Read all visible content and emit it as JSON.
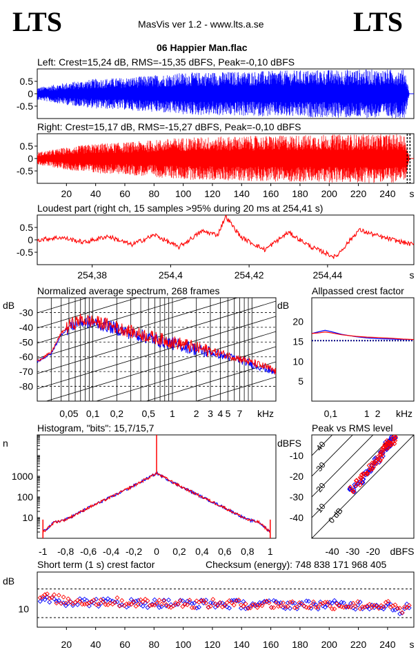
{
  "header": {
    "logo_left": "LTS",
    "logo_right": "LTS",
    "app": "MasVis ver 1.2 - www.lts.a.se",
    "track": "06 Happier Man.flac"
  },
  "colors": {
    "left": "#0000ff",
    "right": "#ff0000",
    "dotted": "#000080"
  },
  "panels": {
    "left_wave": {
      "title": "Left: Crest=15,24 dB, RMS=-15,35 dBFS, Peak=-0,10 dBFS",
      "yticks": [
        "0.5",
        "0",
        "-0.5"
      ]
    },
    "right_wave": {
      "title": "Right: Crest=15,17 dB, RMS=-15,27 dBFS, Peak=-0,10 dBFS",
      "yticks": [
        "0.5",
        "0",
        "-0.5"
      ],
      "xticks": [
        "20",
        "40",
        "60",
        "80",
        "100",
        "120",
        "140",
        "160",
        "180",
        "200",
        "220",
        "240"
      ],
      "unit": "s"
    },
    "loudest": {
      "title": "Loudest part (right ch, 15 samples >95% during 20 ms at 254,41 s)",
      "yticks": [
        "0.5",
        "0",
        "-0.5"
      ],
      "xticks": [
        "254,38",
        "254,4",
        "254,42",
        "254,44"
      ],
      "unit": "s"
    },
    "spectrum": {
      "title": "Normalized average spectrum, 268 frames",
      "ylabel": "dB",
      "yticks": [
        "-30",
        "-40",
        "-50",
        "-60",
        "-70",
        "-80"
      ],
      "xticks": [
        "0,05",
        "0,1",
        "0,2",
        "0,5",
        "1",
        "2",
        "3",
        "4",
        "5",
        "7"
      ],
      "unit": "kHz"
    },
    "allpass": {
      "title": "Allpassed crest factor",
      "ylabel": "dB",
      "yticks": [
        "20",
        "15",
        "10",
        "5"
      ],
      "xticks": [
        "0,1",
        "1",
        "2"
      ],
      "unit": "kHz"
    },
    "histogram": {
      "title": "Histogram, \"bits\": 15,7/15,7",
      "ylabel": "n",
      "yticks": [
        "1000",
        "100",
        "10"
      ],
      "xticks": [
        "-1",
        "-0,8",
        "-0,6",
        "-0,4",
        "-0,2",
        "0",
        "0,2",
        "0,4",
        "0,6",
        "0,8",
        "1"
      ]
    },
    "peak_rms": {
      "title": "Peak vs RMS level",
      "ylabel": "dBFS",
      "yticks": [
        "-10",
        "-20",
        "-30",
        "-40"
      ],
      "xticks": [
        "-40",
        "-30",
        "-20"
      ],
      "unit": "dBFS",
      "diag_labels": [
        "40",
        "30",
        "20",
        "10",
        "0 dB"
      ]
    },
    "short_crest": {
      "title": "Short term (1 s) crest factor",
      "ylabel": "dB",
      "ytick": "10",
      "checksum": "Checksum (energy):   748 838 171 968 405",
      "xticks": [
        "20",
        "40",
        "60",
        "80",
        "100",
        "120",
        "140",
        "160",
        "180",
        "200",
        "220",
        "240"
      ],
      "unit": "s"
    }
  },
  "chart_data": [
    {
      "type": "area",
      "title": "Left: Crest=15,24 dB, RMS=-15,35 dBFS, Peak=-0,10 dBFS",
      "xlim": [
        0,
        258
      ],
      "ylim": [
        -1,
        1
      ],
      "envelope": {
        "x": [
          0,
          20,
          40,
          60,
          80,
          100,
          120,
          140,
          160,
          180,
          200,
          220,
          240,
          252,
          255
        ],
        "peak": [
          0.25,
          0.45,
          0.6,
          0.65,
          0.75,
          0.85,
          0.88,
          0.9,
          0.92,
          0.95,
          0.97,
          0.98,
          0.98,
          0.98,
          0.0
        ]
      }
    },
    {
      "type": "area",
      "title": "Right: Crest=15,17 dB, RMS=-15,27 dBFS, Peak=-0,10 dBFS",
      "xlim": [
        0,
        258
      ],
      "ylim": [
        -1,
        1
      ],
      "envelope": {
        "x": [
          0,
          20,
          40,
          60,
          80,
          100,
          120,
          140,
          160,
          180,
          200,
          220,
          240,
          252,
          255
        ],
        "peak": [
          0.25,
          0.45,
          0.6,
          0.65,
          0.75,
          0.85,
          0.88,
          0.9,
          0.92,
          0.95,
          0.97,
          0.98,
          0.98,
          0.98,
          0.0
        ]
      },
      "marker_x": 254.41
    },
    {
      "type": "line",
      "title": "Loudest part (right ch, 15 samples >95% during 20 ms at 254,41 s)",
      "xlim": [
        254.366,
        254.462
      ],
      "ylim": [
        -1,
        1
      ],
      "x": [
        254.366,
        254.372,
        254.378,
        254.384,
        254.39,
        254.396,
        254.402,
        254.408,
        254.412,
        254.414,
        254.418,
        254.424,
        254.43,
        254.436,
        254.442,
        254.448,
        254.454,
        254.462
      ],
      "y": [
        0.0,
        0.1,
        -0.1,
        0.15,
        -0.2,
        0.2,
        -0.3,
        0.35,
        0.2,
        0.95,
        0.1,
        -0.4,
        0.3,
        -0.3,
        -0.7,
        0.4,
        0.1,
        -0.2
      ]
    },
    {
      "type": "line",
      "title": "Normalized average spectrum, 268 frames",
      "xlim": [
        0.02,
        20
      ],
      "ylim": [
        -90,
        -20
      ],
      "series": [
        {
          "x": [
            0.02,
            0.03,
            0.04,
            0.05,
            0.07,
            0.1,
            0.15,
            0.2,
            0.3,
            0.5,
            0.7,
            1,
            1.5,
            2,
            3,
            5,
            7,
            10,
            15,
            20
          ],
          "values": [
            -63,
            -58,
            -45,
            -40,
            -36,
            -37,
            -39,
            -41,
            -44,
            -47,
            -49,
            -51,
            -53,
            -55,
            -57,
            -60,
            -62,
            -65,
            -68,
            -71
          ]
        },
        {
          "x": [
            0.02,
            0.03,
            0.04,
            0.05,
            0.07,
            0.1,
            0.15,
            0.2,
            0.3,
            0.5,
            0.7,
            1,
            1.5,
            2,
            3,
            5,
            7,
            10,
            15,
            20
          ],
          "values": [
            -63,
            -57,
            -44,
            -39,
            -35,
            -36,
            -38,
            -40,
            -43,
            -46,
            -48,
            -50,
            -52,
            -54,
            -56,
            -59,
            -61,
            -64,
            -67,
            -70
          ]
        }
      ]
    },
    {
      "type": "line",
      "title": "Allpassed crest factor",
      "xlim": [
        0.03,
        20
      ],
      "ylim": [
        0,
        26
      ],
      "reference": 15.2,
      "series": [
        {
          "x": [
            0.03,
            0.05,
            0.07,
            0.1,
            0.2,
            0.5,
            1,
            2,
            5,
            10,
            20
          ],
          "values": [
            17.0,
            17.5,
            17.8,
            17.5,
            16.8,
            16.2,
            15.9,
            15.7,
            15.6,
            15.5,
            15.5
          ]
        },
        {
          "x": [
            0.03,
            0.05,
            0.07,
            0.1,
            0.2,
            0.5,
            1,
            2,
            5,
            10,
            20
          ],
          "values": [
            17.0,
            17.2,
            17.4,
            17.2,
            16.7,
            16.3,
            16.1,
            16.0,
            15.8,
            15.6,
            15.5
          ]
        }
      ]
    },
    {
      "type": "line",
      "title": "Histogram, \"bits\": 15,7/15,7",
      "xlim": [
        -1.05,
        1.05
      ],
      "ylim": [
        1,
        100000
      ],
      "yscale": "log",
      "x": [
        -1,
        -0.9,
        -0.8,
        -0.6,
        -0.4,
        -0.2,
        0,
        0.2,
        0.4,
        0.6,
        0.8,
        0.9,
        1
      ],
      "values": [
        2,
        6,
        8,
        30,
        100,
        350,
        1400,
        350,
        100,
        30,
        8,
        6,
        2
      ],
      "zero_spike": 100000
    },
    {
      "type": "scatter",
      "title": "Peak vs RMS level",
      "xlim": [
        -50,
        0
      ],
      "ylim": [
        -50,
        0
      ],
      "series": [
        {
          "x": [
            -30,
            -28,
            -26,
            -24,
            -22,
            -20,
            -18,
            -16,
            -14,
            -13,
            -12,
            -11,
            -10
          ],
          "values": [
            -27,
            -24,
            -22,
            -19,
            -17,
            -15,
            -12,
            -9,
            -6,
            -5,
            -4,
            -3,
            -2
          ]
        },
        {
          "x": [
            -30,
            -27,
            -25,
            -23,
            -21,
            -19,
            -17,
            -15,
            -14,
            -13,
            -12,
            -11,
            -10
          ],
          "values": [
            -26,
            -23,
            -20,
            -18,
            -16,
            -13,
            -11,
            -8,
            -6,
            -5,
            -4,
            -3,
            -2
          ]
        }
      ]
    },
    {
      "type": "scatter",
      "title": "Short term (1 s) crest factor",
      "xlim": [
        0,
        258
      ],
      "ylim": [
        5,
        20
      ],
      "reference_lines": [
        15,
        10
      ],
      "series": [
        {
          "x": [
            5,
            20,
            40,
            60,
            80,
            100,
            120,
            140,
            160,
            180,
            200,
            220,
            240,
            250,
            254
          ],
          "values": [
            13,
            12,
            11.8,
            11.6,
            11.5,
            11.4,
            11.3,
            11.2,
            11.2,
            11.1,
            11.1,
            11.0,
            11.0,
            9.5,
            10.5
          ]
        },
        {
          "x": [
            5,
            20,
            40,
            60,
            80,
            100,
            120,
            140,
            160,
            180,
            200,
            220,
            240,
            250,
            254
          ],
          "values": [
            13.2,
            12.2,
            12.0,
            11.8,
            11.6,
            11.5,
            11.4,
            11.3,
            11.2,
            11.1,
            11.1,
            11.0,
            11.0,
            9.4,
            10.3
          ]
        }
      ]
    }
  ]
}
